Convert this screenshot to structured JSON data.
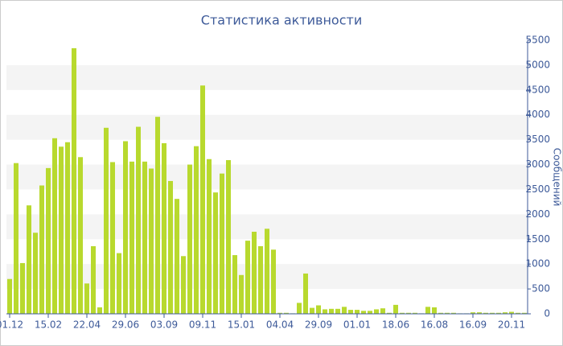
{
  "chart_data": {
    "type": "bar",
    "title": "Статистика активности",
    "y_label": "Сообщений",
    "categories": [
      "01.12",
      null,
      null,
      null,
      null,
      null,
      "15.02",
      null,
      null,
      null,
      null,
      null,
      "22.04",
      null,
      null,
      null,
      null,
      null,
      "29.06",
      null,
      null,
      null,
      null,
      null,
      "03.09",
      null,
      null,
      null,
      null,
      null,
      "09.11",
      null,
      null,
      null,
      null,
      null,
      "15.01",
      null,
      null,
      null,
      null,
      null,
      "04.04",
      null,
      null,
      null,
      null,
      null,
      "29.09",
      null,
      null,
      null,
      null,
      null,
      "01.01",
      null,
      null,
      null,
      null,
      null,
      "18.06",
      null,
      null,
      null,
      null,
      null,
      "16.08",
      null,
      null,
      null,
      null,
      null,
      "16.09",
      null,
      null,
      null,
      null,
      null,
      "20.11",
      null,
      null
    ],
    "values": [
      700,
      3030,
      1020,
      2180,
      1630,
      2580,
      2930,
      3530,
      3360,
      3450,
      5340,
      3150,
      610,
      1360,
      130,
      3740,
      3050,
      1220,
      3470,
      3060,
      3760,
      3060,
      2920,
      3960,
      3430,
      2670,
      2310,
      1160,
      3000,
      3370,
      4590,
      3110,
      2440,
      2820,
      3090,
      1180,
      780,
      1470,
      1650,
      1360,
      1710,
      1290,
      20,
      20,
      10,
      220,
      810,
      120,
      170,
      90,
      100,
      100,
      140,
      80,
      80,
      60,
      60,
      90,
      110,
      20,
      180,
      20,
      20,
      20,
      10,
      140,
      130,
      20,
      20,
      20,
      10,
      10,
      30,
      30,
      20,
      20,
      20,
      30,
      40,
      20,
      20
    ],
    "color": "#b8d92e",
    "ylim": [
      0,
      5500
    ],
    "yticks": [
      0,
      500,
      1000,
      1500,
      2000,
      2500,
      3000,
      3500,
      4000,
      4500,
      5000,
      5500
    ],
    "y_axis_side": "right",
    "grid": "bands"
  }
}
